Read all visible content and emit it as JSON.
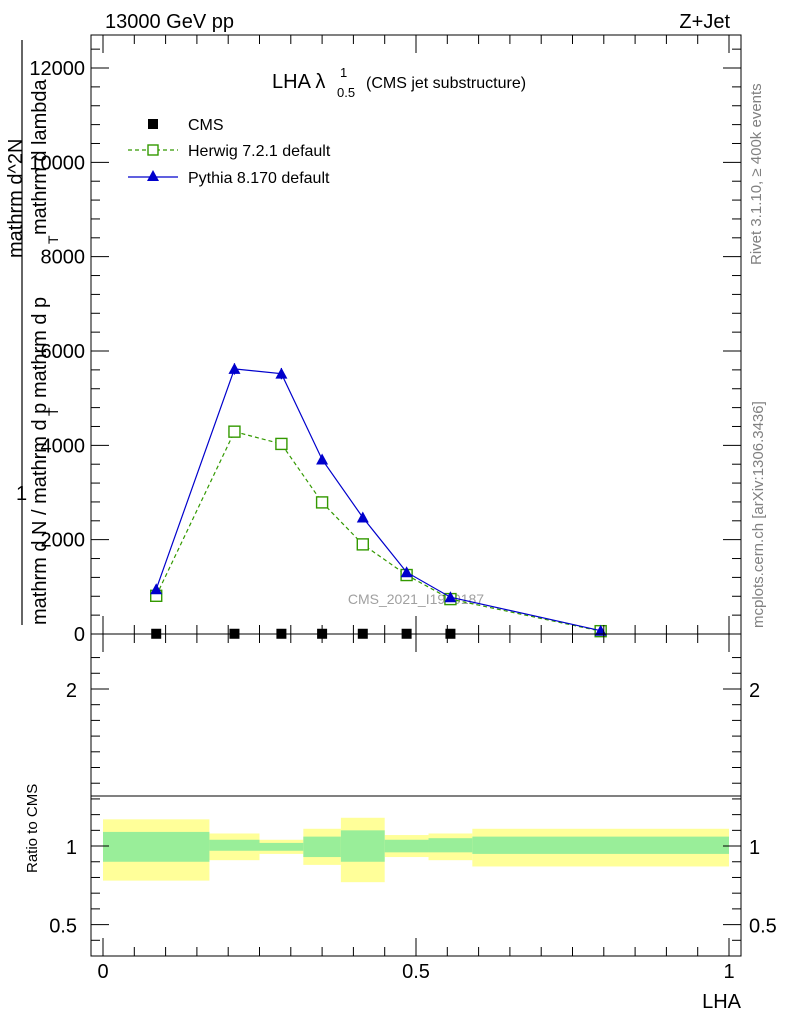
{
  "header": {
    "left": "13000 GeV pp",
    "right": "Z+Jet"
  },
  "side_labels": {
    "rivet": "Rivet 3.1.10, ≥ 400k events",
    "mcplots": "mcplots.cern.ch [arXiv:1306.3436]"
  },
  "watermark": "CMS_2021_I1920187",
  "colors": {
    "data": "#000000",
    "herwig": "#339900",
    "pythia": "#0000cc",
    "band_inner": "#99ee99",
    "band_outer": "#ffff99"
  },
  "chart_data": [
    {
      "type": "line",
      "title": "LHA",
      "title_symbol": "λ",
      "title_sup": "1",
      "title_sub": "0.5",
      "title_suffix": "(CMS jet substructure)",
      "xlabel": "",
      "ylabel_parts": [
        "1",
        "mathrm d N / mathrm d p",
        "mathrm d^2N",
        "mathrm d p",
        "mathrm d lambda",
        "T",
        "T"
      ],
      "xlim": [
        0,
        1
      ],
      "ylim": [
        0,
        12700
      ],
      "yticks": [
        0,
        2000,
        4000,
        6000,
        8000,
        10000,
        12000
      ],
      "ytick_labels": [
        "0",
        "2000",
        "4000",
        "6000",
        "8000",
        "10000",
        "12000"
      ],
      "legend_position": "top-left",
      "series": [
        {
          "name": "CMS",
          "marker": "square",
          "x": [
            0.085,
            0.21,
            0.285,
            0.35,
            0.415,
            0.485,
            0.555
          ],
          "y": [
            5,
            5,
            5,
            5,
            5,
            5,
            5
          ]
        },
        {
          "name": "Herwig 7.2.1 default",
          "marker": "open-square",
          "style": "dashed",
          "x": [
            0.085,
            0.21,
            0.285,
            0.35,
            0.415,
            0.485,
            0.555,
            0.795
          ],
          "y": [
            810,
            4290,
            4030,
            2790,
            1900,
            1250,
            740,
            60
          ]
        },
        {
          "name": "Pythia 8.170 default",
          "marker": "triangle",
          "style": "solid",
          "x": [
            0.085,
            0.21,
            0.285,
            0.35,
            0.415,
            0.485,
            0.555,
            0.795
          ],
          "y": [
            950,
            5620,
            5520,
            3700,
            2470,
            1310,
            780,
            70
          ],
          "err": [
            60,
            120,
            120,
            90,
            70,
            50,
            40,
            10
          ]
        }
      ]
    },
    {
      "type": "area",
      "title": "",
      "ylabel": "Ratio to CMS",
      "xlabel": "LHA",
      "xlim": [
        0,
        1
      ],
      "ylim": [
        0.3,
        2.35
      ],
      "xticks": [
        0,
        0.5,
        1
      ],
      "xtick_labels": [
        "0",
        "0.5",
        "1"
      ],
      "yticks": [
        0.5,
        1,
        2
      ],
      "ytick_labels": [
        "0.5",
        "1",
        "2"
      ],
      "bins": [
        {
          "x0": 0.0,
          "x1": 0.17,
          "inner": [
            0.9,
            1.09
          ],
          "outer": [
            0.78,
            1.17
          ]
        },
        {
          "x0": 0.17,
          "x1": 0.25,
          "inner": [
            0.97,
            1.04
          ],
          "outer": [
            0.91,
            1.08
          ]
        },
        {
          "x0": 0.25,
          "x1": 0.32,
          "inner": [
            0.97,
            1.02
          ],
          "outer": [
            0.95,
            1.04
          ]
        },
        {
          "x0": 0.32,
          "x1": 0.38,
          "inner": [
            0.93,
            1.06
          ],
          "outer": [
            0.88,
            1.11
          ]
        },
        {
          "x0": 0.38,
          "x1": 0.45,
          "inner": [
            0.9,
            1.1
          ],
          "outer": [
            0.77,
            1.18
          ]
        },
        {
          "x0": 0.45,
          "x1": 0.52,
          "inner": [
            0.96,
            1.04
          ],
          "outer": [
            0.93,
            1.07
          ]
        },
        {
          "x0": 0.52,
          "x1": 0.59,
          "inner": [
            0.96,
            1.05
          ],
          "outer": [
            0.91,
            1.08
          ]
        },
        {
          "x0": 0.59,
          "x1": 1.0,
          "inner": [
            0.95,
            1.06
          ],
          "outer": [
            0.87,
            1.11
          ]
        }
      ]
    }
  ]
}
